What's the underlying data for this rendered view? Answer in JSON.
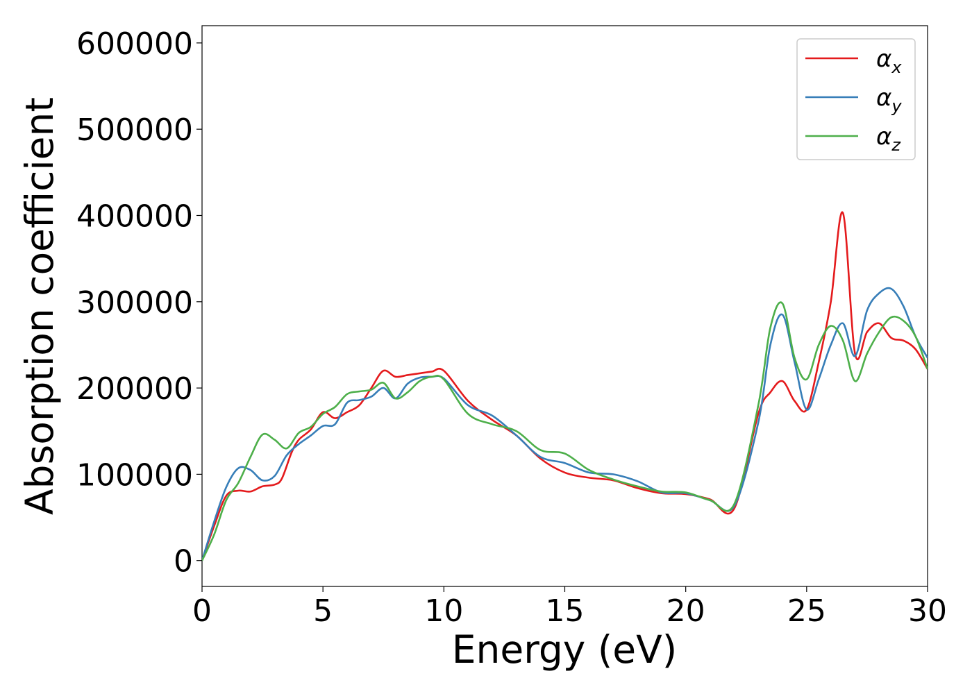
{
  "chart_data": {
    "type": "line",
    "xlabel": "Energy (eV)",
    "ylabel": "Absorption coefficient",
    "xlim": [
      0,
      30
    ],
    "ylim": [
      -30000,
      620000
    ],
    "xticks": [
      "0",
      "5",
      "10",
      "15",
      "20",
      "25",
      "30"
    ],
    "yticks": [
      "0",
      "100000",
      "200000",
      "300000",
      "400000",
      "500000",
      "600000"
    ],
    "grid": false,
    "legend_position": "top-right",
    "legend": [
      {
        "symbol": "α",
        "sub": "x"
      },
      {
        "symbol": "α",
        "sub": "y"
      },
      {
        "symbol": "α",
        "sub": "z"
      }
    ],
    "series": [
      {
        "name": "αx",
        "color": "#e41a1c",
        "x": [
          0,
          0.5,
          1,
          1.5,
          2,
          2.5,
          3,
          3.3,
          3.7,
          4,
          4.5,
          5,
          5.5,
          6,
          6.5,
          7,
          7.5,
          8,
          8.5,
          9,
          9.5,
          10,
          11,
          12,
          13,
          14,
          15,
          16,
          17,
          18,
          19,
          20,
          21,
          22,
          23,
          23.5,
          24,
          24.5,
          25,
          25.5,
          26,
          26.5,
          27,
          27.5,
          28,
          28.5,
          29,
          29.5,
          30
        ],
        "y": [
          0,
          40000,
          75000,
          81000,
          80000,
          86000,
          88000,
          95000,
          125000,
          140000,
          152000,
          172000,
          165000,
          172000,
          180000,
          200000,
          220000,
          213000,
          215000,
          217000,
          219000,
          220000,
          185000,
          163000,
          145000,
          118000,
          102000,
          96000,
          93000,
          84000,
          78000,
          77000,
          71000,
          60000,
          170000,
          195000,
          208000,
          185000,
          175000,
          230000,
          300000,
          403000,
          240000,
          265000,
          275000,
          258000,
          255000,
          245000,
          222000
        ]
      },
      {
        "name": "αy",
        "color": "#377eb8",
        "x": [
          0,
          0.5,
          1,
          1.5,
          2,
          2.5,
          3,
          3.5,
          4,
          4.5,
          5,
          5.5,
          6,
          6.5,
          7,
          7.5,
          8,
          8.5,
          9,
          9.5,
          10,
          11,
          12,
          13,
          14,
          15,
          16,
          17,
          18,
          19,
          20,
          21,
          22,
          23,
          23.5,
          24,
          24.5,
          25,
          25.5,
          26,
          26.5,
          27,
          27.5,
          28,
          28.5,
          29,
          29.5,
          30
        ],
        "y": [
          0,
          45000,
          85000,
          107000,
          105000,
          93000,
          98000,
          122000,
          135000,
          145000,
          156000,
          158000,
          183000,
          186000,
          190000,
          200000,
          188000,
          205000,
          212000,
          213000,
          211000,
          180000,
          168000,
          145000,
          120000,
          113000,
          102000,
          100000,
          92000,
          79000,
          78000,
          70000,
          63000,
          160000,
          250000,
          285000,
          230000,
          175000,
          210000,
          250000,
          275000,
          237000,
          290000,
          310000,
          315000,
          295000,
          260000,
          235000
        ]
      },
      {
        "name": "αz",
        "color": "#4daf4a",
        "x": [
          0,
          0.5,
          1,
          1.5,
          2,
          2.5,
          3,
          3.5,
          4,
          4.5,
          5,
          5.5,
          6,
          6.5,
          7,
          7.5,
          8,
          8.5,
          9,
          9.5,
          10,
          11,
          12,
          13,
          14,
          15,
          16,
          17,
          18,
          19,
          20,
          21,
          22,
          23,
          23.5,
          24,
          24.5,
          25,
          25.5,
          26,
          26.5,
          27,
          27.5,
          28,
          28.5,
          29,
          29.5,
          30
        ],
        "y": [
          0,
          30000,
          70000,
          90000,
          120000,
          146000,
          140000,
          130000,
          148000,
          155000,
          170000,
          178000,
          193000,
          196000,
          198000,
          206000,
          188000,
          195000,
          208000,
          213000,
          210000,
          170000,
          158000,
          150000,
          128000,
          124000,
          105000,
          94000,
          86000,
          80000,
          79000,
          70000,
          65000,
          180000,
          270000,
          298000,
          235000,
          210000,
          250000,
          272000,
          255000,
          208000,
          240000,
          265000,
          282000,
          278000,
          260000,
          222000
        ]
      }
    ]
  }
}
